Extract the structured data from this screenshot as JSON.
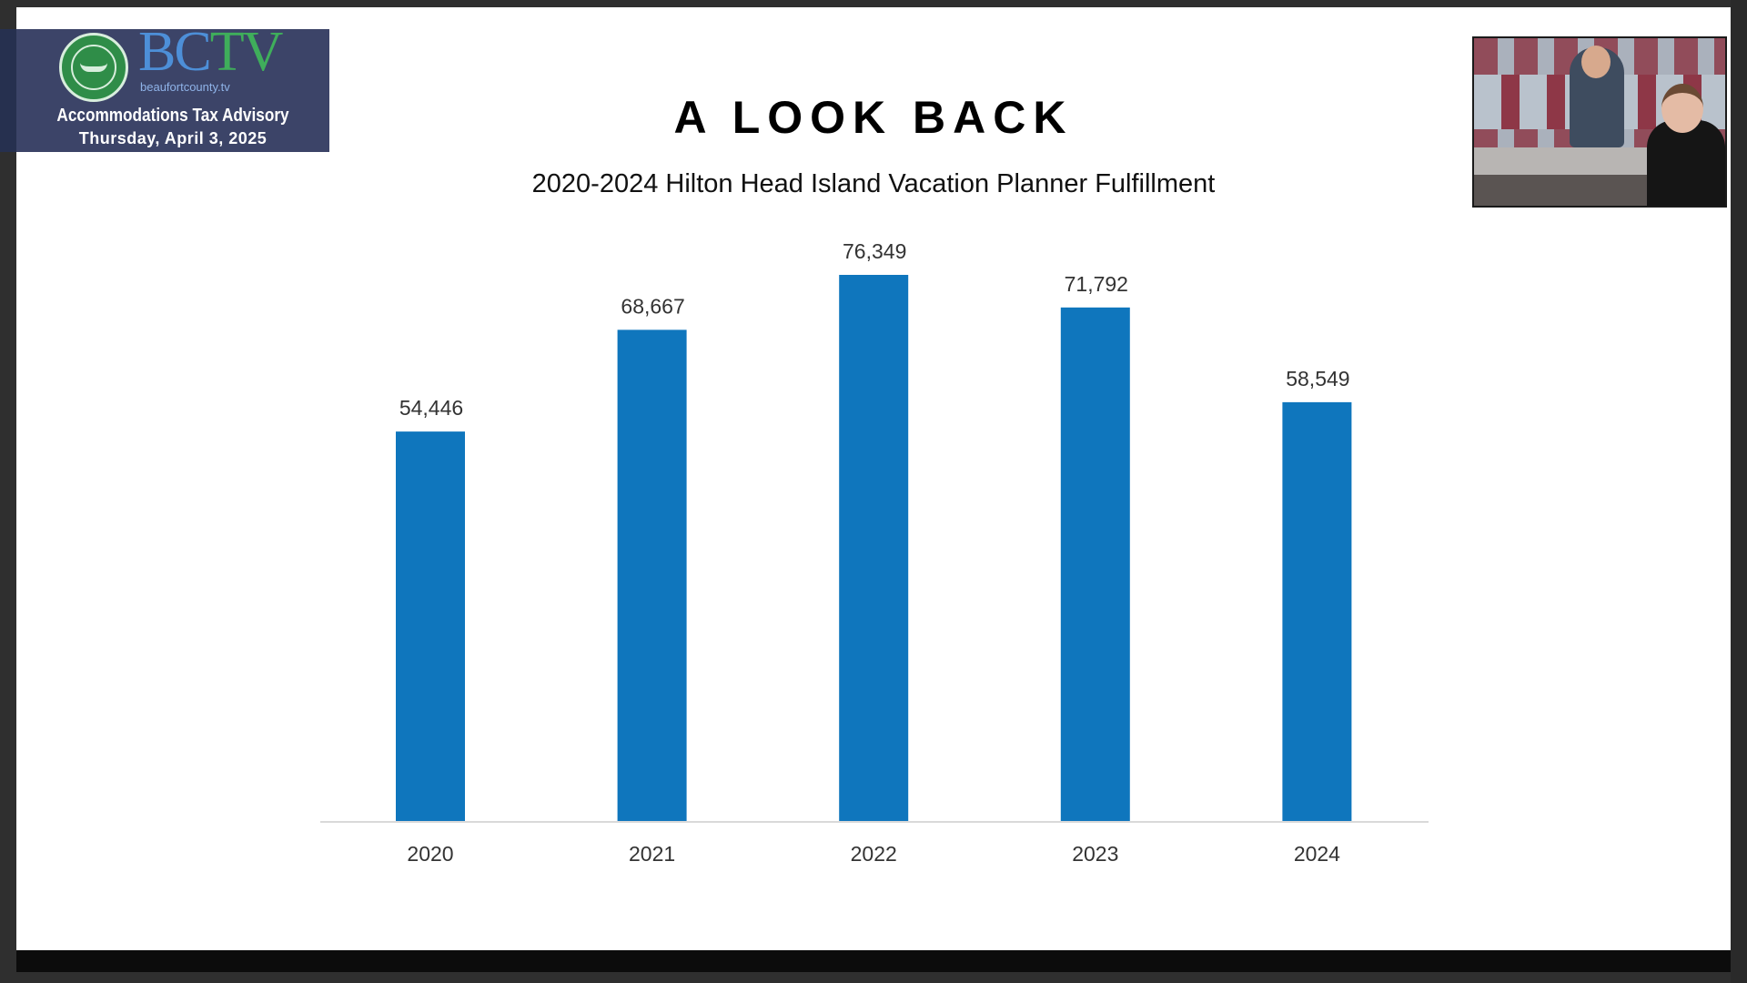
{
  "overlay": {
    "brand_bc": "BC",
    "brand_tv": "TV",
    "brand_sub": "beaufortcounty.tv",
    "program": "Accommodations Tax Advisory",
    "date": "Thursday, April 3, 2025"
  },
  "slide": {
    "title": "A LOOK BACK"
  },
  "chart_data": {
    "type": "bar",
    "title": "2020-2024 Hilton Head Island Vacation Planner Fulfillment",
    "categories": [
      "2020",
      "2021",
      "2022",
      "2023",
      "2024"
    ],
    "values": [
      54446,
      68667,
      76349,
      71792,
      58549
    ],
    "value_labels": [
      "54,446",
      "68,667",
      "76,349",
      "71,792",
      "58,549"
    ],
    "xlabel": "",
    "ylabel": "",
    "grid": false,
    "legend": "none",
    "colors": {
      "bar": "#0f76bd",
      "axis": "#d9d9d9",
      "label": "#333333"
    }
  }
}
